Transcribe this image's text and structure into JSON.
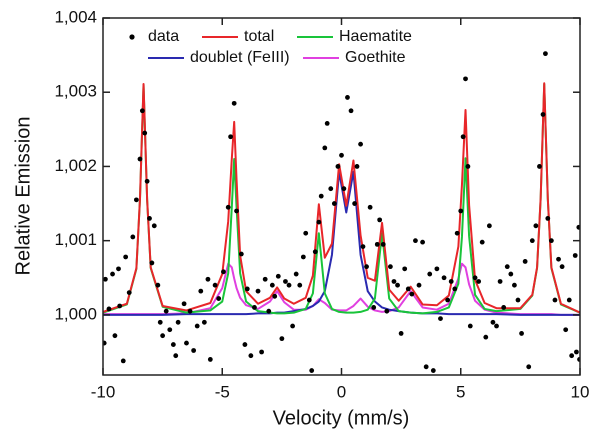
{
  "chart_data": {
    "type": "line",
    "xlabel": "Velocity (mm/s)",
    "ylabel": "Relative Emission",
    "xlim": [
      -10,
      10
    ],
    "xticks": [
      -10,
      -5,
      0,
      5,
      10
    ],
    "ylim": [
      0.99919,
      1.004
    ],
    "yticks": [
      {
        "value": 1.0,
        "label": "1,000"
      },
      {
        "value": 1.001,
        "label": "1,001"
      },
      {
        "value": 1.002,
        "label": "1,002"
      },
      {
        "value": 1.003,
        "label": "1,003"
      },
      {
        "value": 1.004,
        "label": "1,004"
      }
    ],
    "legend": "upper left",
    "x": [
      -10,
      -9,
      -8.6,
      -8.45,
      -8.3,
      -8.15,
      -8,
      -7.5,
      -6.5,
      -5.5,
      -5,
      -4.75,
      -4.6,
      -4.5,
      -4.4,
      -4.25,
      -4,
      -3.5,
      -3,
      -2.7,
      -2.4,
      -2,
      -1.5,
      -1.2,
      -0.95,
      -0.7,
      -0.4,
      -0.1,
      0.2,
      0.5,
      0.8,
      1.1,
      1.4,
      1.7,
      2,
      2.4,
      2.9,
      3.4,
      4,
      4.5,
      4.9,
      5.05,
      5.2,
      5.35,
      5.6,
      6,
      6.5,
      7.5,
      8,
      8.2,
      8.35,
      8.5,
      8.65,
      8.8,
      9.2,
      10
    ],
    "series": [
      {
        "name": "data",
        "type": "scatter",
        "color": "#000000",
        "x": [
          -9.95,
          -9.9,
          -9.75,
          -9.6,
          -9.5,
          -9.35,
          -9.3,
          -9.15,
          -9.05,
          -8.9,
          -8.75,
          -8.6,
          -8.45,
          -8.35,
          -8.25,
          -8.15,
          -8.05,
          -7.95,
          -7.85,
          -7.7,
          -7.6,
          -7.5,
          -7.35,
          -7.2,
          -7.05,
          -6.95,
          -6.85,
          -6.6,
          -6.5,
          -6.35,
          -6.2,
          -6.05,
          -5.9,
          -5.75,
          -5.6,
          -5.5,
          -5.3,
          -5.15,
          -4.95,
          -4.75,
          -4.65,
          -4.5,
          -4.4,
          -4.2,
          -4.05,
          -3.95,
          -3.8,
          -3.65,
          -3.5,
          -3.35,
          -3.2,
          -3.05,
          -2.9,
          -2.8,
          -2.65,
          -2.5,
          -2.35,
          -2.2,
          -2.05,
          -1.9,
          -1.75,
          -1.6,
          -1.5,
          -1.35,
          -1.25,
          -1.1,
          -0.95,
          -0.85,
          -0.7,
          -0.6,
          -0.45,
          -0.3,
          -0.15,
          0.0,
          0.1,
          0.25,
          0.4,
          0.55,
          0.65,
          0.8,
          0.9,
          1.05,
          1.2,
          1.35,
          1.5,
          1.6,
          1.75,
          1.9,
          2.05,
          2.2,
          2.35,
          2.5,
          2.65,
          2.8,
          2.95,
          3.1,
          3.25,
          3.4,
          3.55,
          3.7,
          3.85,
          4.0,
          4.15,
          4.3,
          4.45,
          4.6,
          4.75,
          4.85,
          5.0,
          5.1,
          5.2,
          5.3,
          5.4,
          5.5,
          5.6,
          5.75,
          5.9,
          6.05,
          6.2,
          6.35,
          6.5,
          6.65,
          6.8,
          6.95,
          7.1,
          7.25,
          7.4,
          7.55,
          7.7,
          7.85,
          8.0,
          8.15,
          8.3,
          8.45,
          8.55,
          8.65,
          8.8,
          8.95,
          9.1,
          9.25,
          9.4,
          9.55,
          9.65,
          9.8,
          9.85,
          9.95,
          9.98
        ],
        "values": [
          0.99962,
          1.00048,
          1.00008,
          1.00055,
          0.99972,
          1.00062,
          1.00012,
          0.99938,
          1.00078,
          1.0003,
          1.00105,
          1.00155,
          1.0021,
          1.00275,
          1.00245,
          1.0018,
          1.0013,
          1.0007,
          1.0012,
          1.0004,
          0.9999,
          0.99972,
          1.00005,
          0.9998,
          0.9996,
          0.99945,
          0.9999,
          1.00015,
          0.99962,
          1.00005,
          0.99952,
          0.99985,
          1.00032,
          0.9999,
          1.00048,
          0.9994,
          1.0004,
          1.00022,
          1.00058,
          1.00145,
          1.0024,
          1.00285,
          1.0014,
          1.00082,
          0.9996,
          1.00035,
          0.99945,
          1.0001,
          1.00032,
          0.9995,
          1.00048,
          1.00005,
          1.0004,
          1.00025,
          1.00052,
          0.99968,
          1.00045,
          1.0004,
          0.99985,
          1.00055,
          1.0004,
          1.00078,
          1.0011,
          1.0002,
          0.99925,
          1.00085,
          1.00125,
          1.0016,
          1.00225,
          1.00258,
          1.0017,
          1.0015,
          1.002,
          1.00215,
          1.0017,
          1.00293,
          1.00275,
          1.0015,
          1.002,
          1.0023,
          1.00092,
          1.00065,
          1.00145,
          1.0001,
          1.00095,
          1.00128,
          1.00095,
          1.00005,
          1.00065,
          1.00045,
          1.0004,
          0.99975,
          1.00062,
          1.00035,
          1.00028,
          1.001,
          1.0004,
          1.00098,
          0.9993,
          1.00055,
          0.99925,
          1.00062,
          0.99995,
          1.0005,
          1.0002,
          1.00045,
          1.00035,
          1.0011,
          1.0014,
          1.0024,
          1.00318,
          1.002,
          0.99985,
          0.99895,
          1.0005,
          1.00045,
          1.00098,
          0.9997,
          1.0012,
          0.9999,
          0.99985,
          1.00045,
          1.0001,
          1.00065,
          1.00055,
          1.0004,
          1.0002,
          0.99975,
          1.00072,
          0.9993,
          1.001,
          1.0012,
          1.002,
          1.0027,
          1.00352,
          1.0013,
          1.001,
          1.0002,
          1.00075,
          1.00065,
          0.9998,
          1.0002,
          0.99945,
          1.0008,
          0.9995,
          1.00118,
          0.9994
        ]
      },
      {
        "name": "total",
        "type": "line",
        "color": "#e8262a",
        "values": [
          1.00004,
          1.00015,
          1.00063,
          1.00156,
          1.00311,
          1.00156,
          1.00064,
          1.00012,
          1.00006,
          1.00016,
          1.00055,
          1.00126,
          1.0021,
          1.0026,
          1.00182,
          1.0008,
          1.00032,
          1.00015,
          1.00023,
          1.00037,
          1.00022,
          1.00015,
          1.00023,
          1.00053,
          1.00149,
          1.00077,
          1.00096,
          1.00203,
          1.00147,
          1.00208,
          1.00107,
          1.0005,
          1.00046,
          1.00124,
          1.00034,
          1.00019,
          1.00038,
          1.00014,
          1.00013,
          1.00026,
          1.00092,
          1.00175,
          1.00276,
          1.00148,
          1.00047,
          1.00016,
          1.00009,
          1.00009,
          1.00027,
          1.00064,
          1.00157,
          1.00312,
          1.00157,
          1.00064,
          1.00015,
          1.00003
        ]
      },
      {
        "name": "Haematite",
        "type": "line",
        "color": "#19c43a",
        "values": [
          1.00003,
          1.00014,
          1.00062,
          1.00155,
          1.0031,
          1.00155,
          1.00063,
          1.00011,
          1.00003,
          1.00006,
          1.00018,
          1.00056,
          1.00145,
          1.0021,
          1.00145,
          1.00056,
          1.00018,
          1.00005,
          1.00003,
          1.00002,
          1.00002,
          1.00003,
          1.00008,
          1.00029,
          1.0011,
          1.00029,
          1.00008,
          1.00004,
          1.00003,
          1.00003,
          1.00004,
          1.00007,
          1.00022,
          1.0011,
          1.00022,
          1.00005,
          1.00003,
          1.00002,
          1.00004,
          1.0001,
          1.00042,
          1.00105,
          1.00211,
          1.00106,
          1.00027,
          1.00008,
          1.00005,
          1.00008,
          1.00026,
          1.00063,
          1.00156,
          1.00311,
          1.00156,
          1.00063,
          1.00014,
          1.00003
        ]
      },
      {
        "name": "doublet (FeIII)",
        "type": "line",
        "color": "#2a2ab0",
        "values": [
          1.0,
          1.0,
          1.0,
          1.0,
          1.0,
          1.0,
          1.0,
          1.0,
          1.00001,
          1.00001,
          1.00001,
          1.00001,
          1.00001,
          1.00001,
          1.00001,
          1.00001,
          1.00001,
          1.00002,
          1.00002,
          1.00003,
          1.00003,
          1.00005,
          1.00008,
          1.00012,
          1.00018,
          1.00032,
          1.00081,
          1.00193,
          1.00138,
          1.00193,
          1.00081,
          1.00032,
          1.00018,
          1.0001,
          1.00007,
          1.00005,
          1.00003,
          1.00002,
          1.00002,
          1.00001,
          1.00001,
          1.00001,
          1.00001,
          1.00001,
          1.00001,
          1.00001,
          1.00001,
          1.0,
          1.0,
          1.0,
          1.0,
          1.0,
          1.0,
          1.0,
          1.0,
          1.0
        ]
      },
      {
        "name": "Goethite",
        "type": "line",
        "color": "#e040e0",
        "values": [
          1.00001,
          1.00001,
          1.00001,
          1.00001,
          1.00001,
          1.00001,
          1.00001,
          1.00001,
          1.00002,
          1.00009,
          1.00036,
          1.00069,
          1.00064,
          1.00049,
          1.00036,
          1.00023,
          1.00013,
          1.00008,
          1.00018,
          1.00032,
          1.00017,
          1.00007,
          1.00007,
          1.00012,
          1.00021,
          1.00016,
          1.00007,
          1.00006,
          1.00006,
          1.00012,
          1.00022,
          1.00011,
          1.00006,
          1.00004,
          1.00005,
          1.0001,
          1.00032,
          1.0001,
          1.00007,
          1.00015,
          1.00049,
          1.00069,
          1.00064,
          1.00041,
          1.00019,
          1.00007,
          1.00003,
          1.00001,
          1.00001,
          1.00001,
          1.00001,
          1.00001,
          1.00001,
          1.00001,
          1.0,
          1.0
        ]
      }
    ]
  }
}
